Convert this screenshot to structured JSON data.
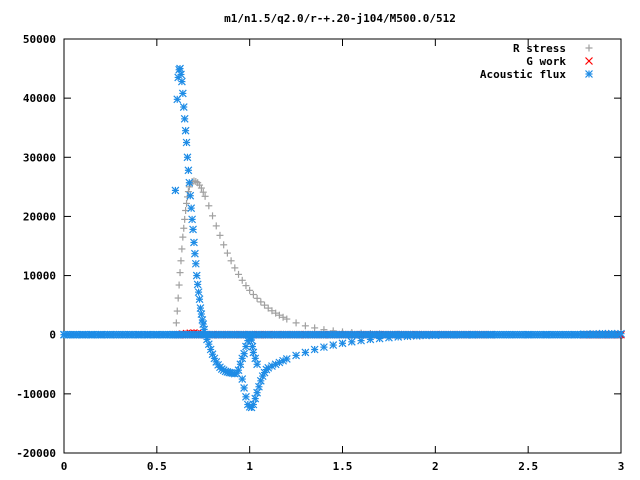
{
  "chart_data": {
    "type": "scatter",
    "title": "m1/n1.5/q2.0/r-+.20-j104/M500.0/512",
    "xlabel": "",
    "ylabel": "",
    "xlim": [
      0,
      3
    ],
    "ylim": [
      -20000,
      50000
    ],
    "x_ticks": [
      0,
      0.5,
      1,
      1.5,
      2,
      2.5,
      3
    ],
    "x_tick_labels": [
      "0",
      "0.5",
      "1",
      "1.5",
      "2",
      "2.5",
      "3"
    ],
    "y_ticks": [
      -20000,
      -10000,
      0,
      10000,
      20000,
      30000,
      40000,
      50000
    ],
    "y_tick_labels": [
      "-20000",
      "-10000",
      "0",
      "10000",
      "20000",
      "30000",
      "40000",
      "50000"
    ],
    "grid": false,
    "legend_position": "top-right",
    "series": [
      {
        "name": "R stress",
        "marker": "plus",
        "color": "#a0a0a0",
        "points": [
          [
            0.6,
            0
          ],
          [
            0.605,
            2000
          ],
          [
            0.61,
            4000
          ],
          [
            0.615,
            6200
          ],
          [
            0.62,
            8400
          ],
          [
            0.625,
            10500
          ],
          [
            0.63,
            12500
          ],
          [
            0.635,
            14500
          ],
          [
            0.64,
            16500
          ],
          [
            0.645,
            18000
          ],
          [
            0.65,
            19500
          ],
          [
            0.655,
            21000
          ],
          [
            0.66,
            22200
          ],
          [
            0.665,
            23300
          ],
          [
            0.67,
            24200
          ],
          [
            0.675,
            25000
          ],
          [
            0.68,
            25500
          ],
          [
            0.69,
            25900
          ],
          [
            0.7,
            26000
          ],
          [
            0.71,
            25900
          ],
          [
            0.72,
            25700
          ],
          [
            0.73,
            25300
          ],
          [
            0.74,
            24800
          ],
          [
            0.75,
            24100
          ],
          [
            0.76,
            23400
          ],
          [
            0.78,
            21800
          ],
          [
            0.8,
            20100
          ],
          [
            0.82,
            18400
          ],
          [
            0.84,
            16800
          ],
          [
            0.86,
            15200
          ],
          [
            0.88,
            13800
          ],
          [
            0.9,
            12500
          ],
          [
            0.92,
            11300
          ],
          [
            0.94,
            10200
          ],
          [
            0.96,
            9200
          ],
          [
            0.98,
            8300
          ],
          [
            1.0,
            7500
          ],
          [
            1.02,
            6800
          ],
          [
            1.04,
            6150
          ],
          [
            1.06,
            5550
          ],
          [
            1.08,
            5000
          ],
          [
            1.1,
            4500
          ],
          [
            1.12,
            4050
          ],
          [
            1.14,
            3650
          ],
          [
            1.16,
            3300
          ],
          [
            1.18,
            2950
          ],
          [
            1.2,
            2650
          ],
          [
            1.25,
            2000
          ],
          [
            1.3,
            1500
          ],
          [
            1.35,
            1150
          ],
          [
            1.4,
            850
          ],
          [
            1.45,
            650
          ],
          [
            1.5,
            480
          ],
          [
            1.55,
            360
          ],
          [
            1.6,
            270
          ],
          [
            1.65,
            200
          ],
          [
            1.7,
            150
          ],
          [
            1.8,
            80
          ],
          [
            1.9,
            45
          ],
          [
            2.0,
            25
          ],
          [
            2.1,
            10
          ],
          [
            2.2,
            5
          ],
          [
            2.3,
            0
          ]
        ]
      },
      {
        "name": "G work",
        "marker": "cross",
        "color": "#ff0000",
        "points": [
          [
            0.6,
            0
          ],
          [
            0.62,
            0
          ],
          [
            0.64,
            100
          ],
          [
            0.66,
            200
          ],
          [
            0.68,
            250
          ],
          [
            0.7,
            300
          ],
          [
            0.72,
            250
          ],
          [
            0.74,
            150
          ],
          [
            0.76,
            0
          ],
          [
            0.8,
            0
          ],
          [
            0.85,
            0
          ],
          [
            0.9,
            0
          ],
          [
            0.95,
            0
          ],
          [
            1.0,
            0
          ],
          [
            1.05,
            0
          ],
          [
            1.1,
            0
          ],
          [
            1.15,
            0
          ],
          [
            1.2,
            0
          ],
          [
            1.3,
            0
          ],
          [
            1.4,
            0
          ],
          [
            1.5,
            0
          ],
          [
            1.6,
            0
          ],
          [
            1.7,
            0
          ],
          [
            1.8,
            0
          ],
          [
            1.9,
            0
          ],
          [
            2.0,
            0
          ],
          [
            2.1,
            0
          ],
          [
            2.2,
            0
          ],
          [
            2.3,
            0
          ],
          [
            2.8,
            0
          ],
          [
            2.85,
            0
          ],
          [
            2.9,
            0
          ],
          [
            2.95,
            0
          ],
          [
            3.0,
            0
          ]
        ]
      },
      {
        "name": "Acoustic flux",
        "marker": "star",
        "color": "#1e8ce6",
        "points": [
          [
            0.0,
            0
          ],
          [
            0.05,
            0
          ],
          [
            0.1,
            0
          ],
          [
            0.15,
            0
          ],
          [
            0.2,
            0
          ],
          [
            0.25,
            0
          ],
          [
            0.3,
            0
          ],
          [
            0.35,
            0
          ],
          [
            0.4,
            0
          ],
          [
            0.45,
            0
          ],
          [
            0.5,
            0
          ],
          [
            0.55,
            0
          ],
          [
            0.59,
            0
          ],
          [
            0.6,
            0
          ],
          [
            0.61,
            0
          ],
          [
            0.6,
            24400
          ],
          [
            0.61,
            39800
          ],
          [
            0.615,
            43500
          ],
          [
            0.62,
            44800
          ],
          [
            0.625,
            45000
          ],
          [
            0.63,
            44000
          ],
          [
            0.635,
            42800
          ],
          [
            0.64,
            40800
          ],
          [
            0.645,
            38500
          ],
          [
            0.65,
            36500
          ],
          [
            0.655,
            34500
          ],
          [
            0.66,
            32500
          ],
          [
            0.665,
            30000
          ],
          [
            0.67,
            27800
          ],
          [
            0.675,
            25700
          ],
          [
            0.68,
            23500
          ],
          [
            0.685,
            21400
          ],
          [
            0.69,
            19500
          ],
          [
            0.695,
            17800
          ],
          [
            0.7,
            15600
          ],
          [
            0.705,
            13700
          ],
          [
            0.71,
            12000
          ],
          [
            0.715,
            10000
          ],
          [
            0.72,
            8500
          ],
          [
            0.725,
            7200
          ],
          [
            0.73,
            6000
          ],
          [
            0.735,
            4500
          ],
          [
            0.74,
            3500
          ],
          [
            0.745,
            2500
          ],
          [
            0.75,
            1800
          ],
          [
            0.755,
            900
          ],
          [
            0.76,
            0
          ],
          [
            0.77,
            -800
          ],
          [
            0.78,
            -1600
          ],
          [
            0.79,
            -2500
          ],
          [
            0.8,
            -3300
          ],
          [
            0.81,
            -4000
          ],
          [
            0.82,
            -4600
          ],
          [
            0.83,
            -5100
          ],
          [
            0.84,
            -5500
          ],
          [
            0.85,
            -5800
          ],
          [
            0.86,
            -6000
          ],
          [
            0.87,
            -6200
          ],
          [
            0.88,
            -6300
          ],
          [
            0.89,
            -6400
          ],
          [
            0.9,
            -6450
          ],
          [
            0.91,
            -6500
          ],
          [
            0.92,
            -6600
          ],
          [
            0.93,
            -6500
          ],
          [
            0.94,
            -6000
          ],
          [
            0.95,
            -5000
          ],
          [
            0.96,
            -4000
          ],
          [
            0.97,
            -3200
          ],
          [
            0.98,
            -2000
          ],
          [
            0.99,
            -1000
          ],
          [
            1.0,
            0
          ],
          [
            1.005,
            -400
          ],
          [
            1.01,
            -900
          ],
          [
            1.015,
            -2000
          ],
          [
            1.02,
            -3000
          ],
          [
            1.03,
            -4000
          ],
          [
            1.04,
            -5000
          ],
          [
            0.96,
            -7500
          ],
          [
            0.97,
            -9000
          ],
          [
            0.98,
            -10500
          ],
          [
            0.99,
            -11800
          ],
          [
            1.0,
            -12200
          ],
          [
            1.01,
            -12300
          ],
          [
            1.02,
            -11800
          ],
          [
            1.03,
            -10800
          ],
          [
            1.04,
            -9800
          ],
          [
            1.05,
            -8800
          ],
          [
            1.06,
            -7800
          ],
          [
            1.07,
            -7000
          ],
          [
            1.08,
            -6400
          ],
          [
            1.09,
            -5900
          ],
          [
            1.1,
            -5600
          ],
          [
            1.12,
            -5300
          ],
          [
            1.14,
            -5000
          ],
          [
            1.16,
            -4700
          ],
          [
            1.18,
            -4400
          ],
          [
            1.2,
            -4100
          ],
          [
            1.25,
            -3500
          ],
          [
            1.3,
            -3000
          ],
          [
            1.35,
            -2500
          ],
          [
            1.4,
            -2100
          ],
          [
            1.45,
            -1750
          ],
          [
            1.5,
            -1450
          ],
          [
            1.55,
            -1200
          ],
          [
            1.6,
            -1000
          ],
          [
            1.65,
            -800
          ],
          [
            1.7,
            -650
          ],
          [
            1.75,
            -500
          ],
          [
            1.8,
            -380
          ],
          [
            1.85,
            -280
          ],
          [
            1.9,
            -200
          ],
          [
            1.95,
            -140
          ],
          [
            2.0,
            -100
          ],
          [
            2.1,
            -50
          ],
          [
            2.2,
            -20
          ],
          [
            2.3,
            0
          ],
          [
            2.4,
            0
          ],
          [
            2.5,
            0
          ],
          [
            2.6,
            0
          ],
          [
            2.7,
            0
          ],
          [
            2.75,
            0
          ],
          [
            2.8,
            100
          ],
          [
            2.85,
            150
          ],
          [
            2.9,
            200
          ],
          [
            2.95,
            200
          ],
          [
            3.0,
            180
          ]
        ]
      }
    ]
  }
}
